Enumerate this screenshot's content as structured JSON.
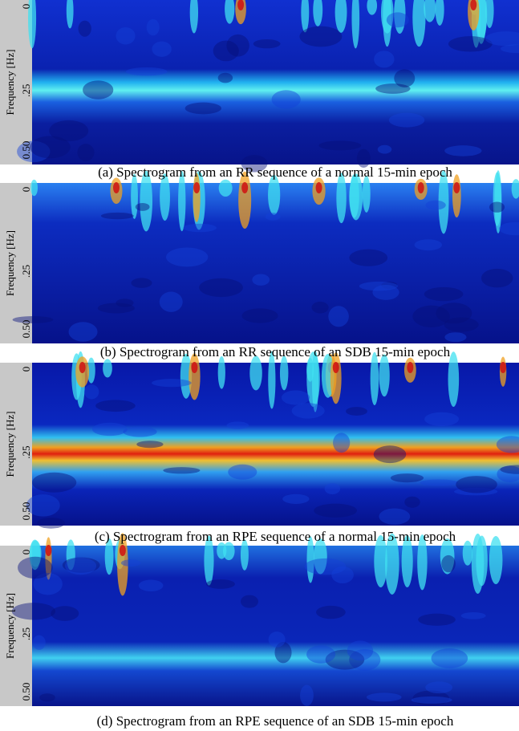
{
  "figure": {
    "y_axis_label": "Frequency [Hz]",
    "yticks": [
      "0",
      ".25",
      "0.50"
    ],
    "panels": [
      {
        "caption": "(a) Spectrogram from an RR sequence of a normal 15-min epoch"
      },
      {
        "caption": "(b) Spectrogram from an RR sequence of an SDB 15-min epoch"
      },
      {
        "caption": "(c) Spectrogram from an RPE sequence of a normal 15-min epoch"
      },
      {
        "caption": "(d) Spectrogram from an RPE sequence of an SDB 15-min epoch"
      }
    ]
  }
}
